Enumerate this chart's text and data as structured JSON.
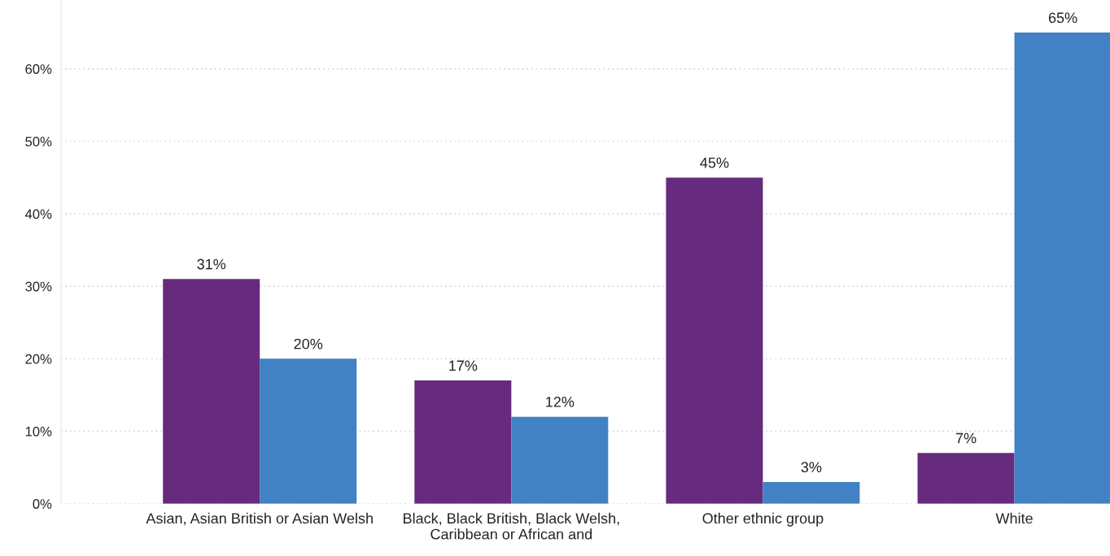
{
  "chart_data": {
    "type": "bar",
    "categories": [
      "Asian, Asian British or Asian Welsh",
      "Black, Black British, Black Welsh,\nCaribbean or African and",
      "Other ethnic group",
      "White"
    ],
    "series": [
      {
        "color": "#662a7e",
        "values": [
          31,
          17,
          45,
          7
        ]
      },
      {
        "color": "#4181c4",
        "values": [
          20,
          12,
          3,
          65
        ]
      }
    ],
    "ylim": [
      0,
      69.5
    ],
    "yticks": [
      {
        "value": 0,
        "label": "0%"
      },
      {
        "value": 10,
        "label": "10%"
      },
      {
        "value": 20,
        "label": "20%"
      },
      {
        "value": 30,
        "label": "30%"
      },
      {
        "value": 40,
        "label": "40%"
      },
      {
        "value": 50,
        "label": "50%"
      },
      {
        "value": 60,
        "label": "60%"
      }
    ],
    "value_labels": [
      [
        "31%",
        "17%",
        "45%",
        "7%"
      ],
      [
        "20%",
        "12%",
        "3%",
        "65%"
      ]
    ],
    "grid": "y",
    "legend": false
  }
}
